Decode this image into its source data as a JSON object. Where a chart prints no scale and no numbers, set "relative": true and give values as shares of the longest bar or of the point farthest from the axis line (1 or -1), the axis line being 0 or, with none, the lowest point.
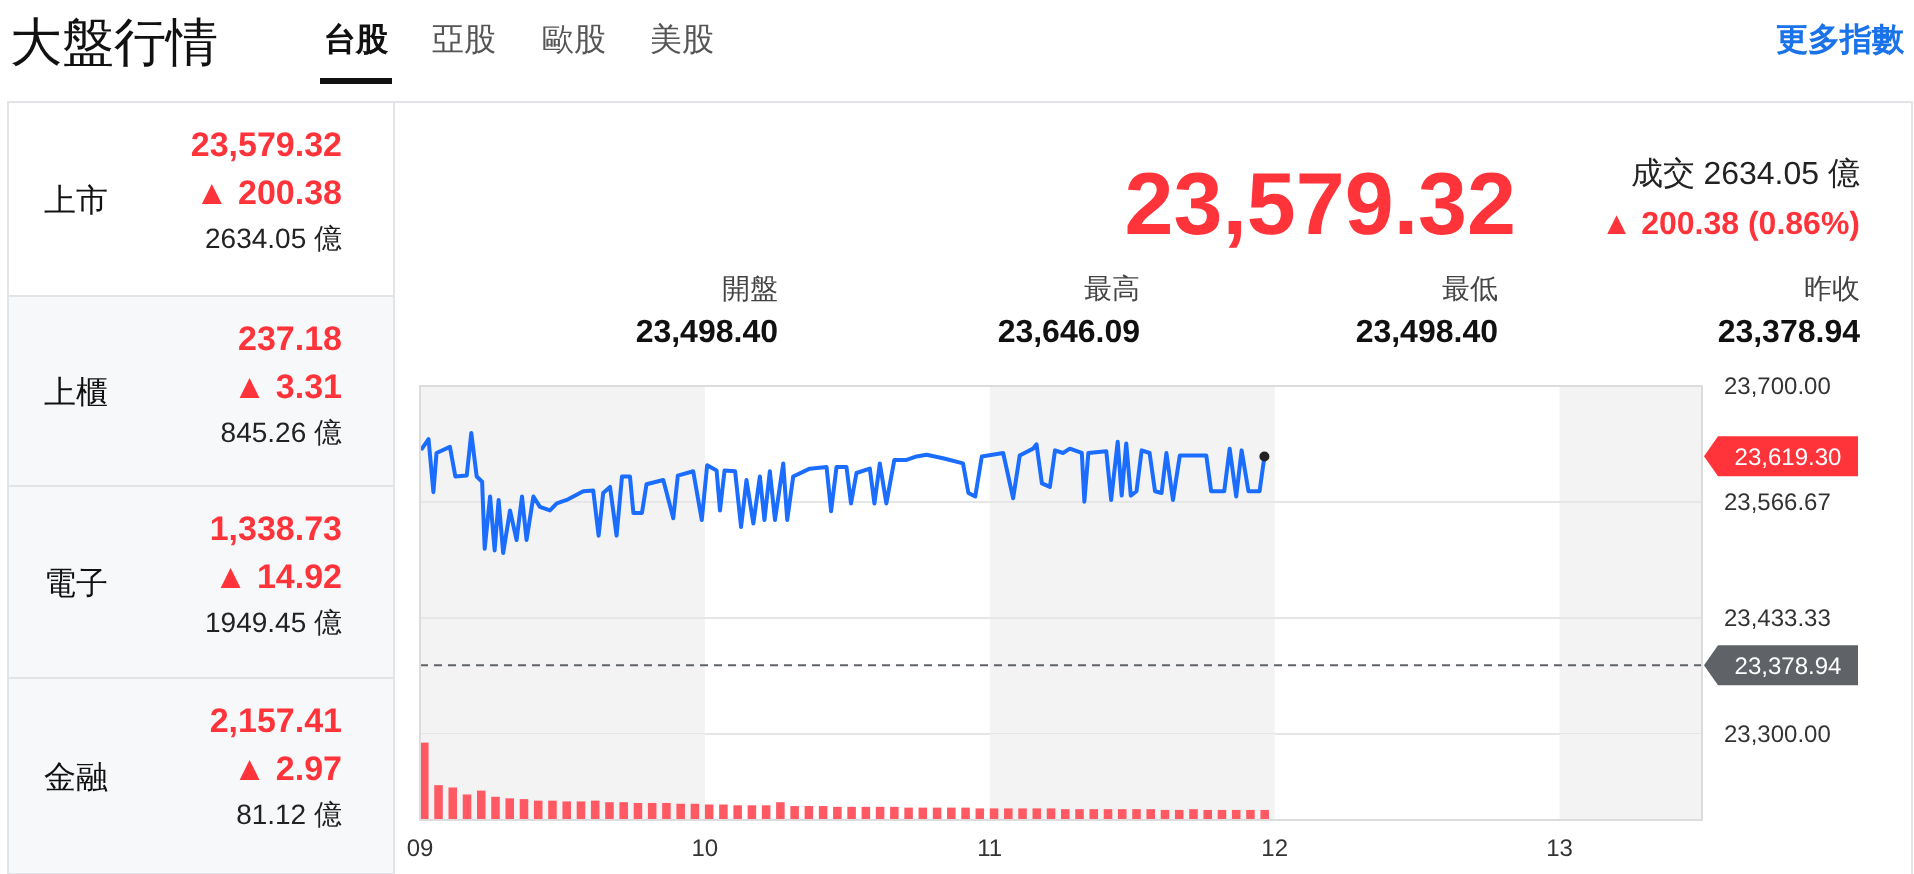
{
  "chart_data": [
    {
      "type": "other",
      "title": "大盤行情",
      "annotations": [
        "台股",
        "亞股",
        "歐股",
        "美股",
        "更多指數",
        "上市",
        "23,579.32",
        "▲ 200.38",
        "2634.05 億",
        "上櫃",
        "237.18",
        "▲ 3.31",
        "845.26 億",
        "電子",
        "1,338.73",
        "▲ 14.92",
        "1949.45 億",
        "金融",
        "2,157.41",
        "▲ 2.97",
        "81.12 億",
        "23,579.32",
        "成交 2634.05 億",
        "▲ 200.38 (0.86%)",
        "開盤",
        "23,498.40",
        "最高",
        "23,646.09",
        "最低",
        "23,498.40",
        "昨收",
        "23,378.94"
      ]
    },
    {
      "type": "line",
      "tick_labels": "y",
      "grid": "y",
      "xlim": [
        9,
        13.5
      ],
      "ylim": [
        23300,
        23700
      ],
      "yticks": [
        {
          "value": 23300,
          "label": "23,300.00"
        },
        {
          "value": 23433.33,
          "label": "23,433.33"
        },
        {
          "value": 23566.67,
          "label": "23,566.67"
        },
        {
          "value": 23700,
          "label": "23,700.00"
        }
      ],
      "bands": [
        {
          "axis": "x",
          "from": 9,
          "to": 10,
          "color": "#f3f3f3"
        },
        {
          "axis": "x",
          "from": 11,
          "to": 12,
          "color": "#f3f3f3"
        },
        {
          "axis": "x",
          "from": 13,
          "to": 13.5,
          "color": "#f3f3f3"
        }
      ],
      "ref_lines": [
        {
          "axis": "y",
          "value": 23378.94,
          "label": "23,378.94",
          "color": "#5f6368",
          "line_style": "dashed"
        }
      ],
      "annotations": [
        {
          "text": "23,619.30",
          "x": 13.5,
          "y": 23619.3
        }
      ],
      "series": [
        {
          "color": "#1a6dff",
          "x": [
            9.007,
            9.03,
            9.047,
            9.058,
            9.105,
            9.124,
            9.164,
            9.18,
            9.199,
            9.218,
            9.227,
            9.246,
            9.262,
            9.276,
            9.292,
            9.316,
            9.339,
            9.358,
            9.374,
            9.398,
            9.421,
            9.456,
            9.48,
            9.515,
            9.573,
            9.608,
            9.627,
            9.643,
            9.667,
            9.69,
            9.709,
            9.737,
            9.749,
            9.779,
            9.795,
            9.854,
            9.889,
            9.905,
            9.959,
            9.989,
            10.008,
            10.041,
            10.053,
            10.069,
            10.106,
            10.127,
            10.146,
            10.17,
            10.193,
            10.209,
            10.228,
            10.246,
            10.275,
            10.289,
            10.31,
            10.368,
            10.427,
            10.443,
            10.462,
            10.497,
            10.513,
            10.532,
            10.579,
            10.595,
            10.614,
            10.637,
            10.665,
            10.708,
            10.743,
            10.778,
            10.836,
            10.906,
            10.925,
            10.949,
            10.972,
            11.047,
            11.082,
            11.105,
            11.152,
            11.164,
            11.183,
            11.211,
            11.229,
            11.257,
            11.281,
            11.323,
            11.332,
            11.346,
            11.409,
            11.426,
            11.449,
            11.463,
            11.479,
            11.495,
            11.515,
            11.533,
            11.561,
            11.58,
            11.603,
            11.62,
            11.643,
            11.667,
            11.76,
            11.777,
            11.823,
            11.842,
            11.865,
            11.884,
            11.908,
            11.947,
            11.964
          ],
          "values": [
            23628,
            23639,
            23578,
            23623,
            23630,
            23596,
            23597,
            23646,
            23596,
            23590,
            23513,
            23573,
            23511,
            23569,
            23508,
            23557,
            23523,
            23573,
            23523,
            23573,
            23561,
            23557,
            23565,
            23569,
            23579,
            23580,
            23528,
            23577,
            23584,
            23528,
            23596,
            23596,
            23554,
            23554,
            23587,
            23592,
            23548,
            23597,
            23602,
            23546,
            23609,
            23603,
            23557,
            23603,
            23602,
            23538,
            23592,
            23542,
            23596,
            23546,
            23602,
            23546,
            23611,
            23546,
            23596,
            23605,
            23607,
            23556,
            23607,
            23607,
            23565,
            23600,
            23605,
            23565,
            23611,
            23565,
            23615,
            23615,
            23619,
            23621,
            23617,
            23611,
            23577,
            23573,
            23619,
            23623,
            23571,
            23620,
            23628,
            23633,
            23588,
            23584,
            23626,
            23623,
            23628,
            23623,
            23567,
            23623,
            23625,
            23569,
            23636,
            23574,
            23634,
            23574,
            23579,
            23626,
            23623,
            23579,
            23577,
            23623,
            23569,
            23620,
            23620,
            23579,
            23579,
            23628,
            23573,
            23626,
            23579,
            23579,
            23619
          ]
        }
      ]
    },
    {
      "type": "bar",
      "relative": true,
      "tick_labels": "x",
      "xlim": [
        9,
        13.5
      ],
      "xticks": [
        {
          "value": 9,
          "label": "09"
        },
        {
          "value": 10,
          "label": "10"
        },
        {
          "value": 11,
          "label": "11"
        },
        {
          "value": 12,
          "label": "12"
        },
        {
          "value": 13,
          "label": "13"
        }
      ],
      "bands": [
        {
          "axis": "x",
          "from": 9,
          "to": 10,
          "color": "#f3f3f3"
        },
        {
          "axis": "x",
          "from": 11,
          "to": 12,
          "color": "#f3f3f3"
        },
        {
          "axis": "x",
          "from": 13,
          "to": 13.5,
          "color": "#f3f3f3"
        }
      ],
      "x": [
        9.0,
        9.05,
        9.1,
        9.15,
        9.2,
        9.25,
        9.3,
        9.35,
        9.4,
        9.45,
        9.5,
        9.55,
        9.6,
        9.65,
        9.7,
        9.75,
        9.8,
        9.85,
        9.9,
        9.95,
        10.0,
        10.05,
        10.1,
        10.15,
        10.2,
        10.25,
        10.3,
        10.35,
        10.4,
        10.45,
        10.5,
        10.55,
        10.6,
        10.65,
        10.7,
        10.75,
        10.8,
        10.85,
        10.9,
        10.95,
        11.0,
        11.05,
        11.1,
        11.15,
        11.2,
        11.25,
        11.3,
        11.35,
        11.4,
        11.45,
        11.5,
        11.55,
        11.6,
        11.65,
        11.7,
        11.75,
        11.8,
        11.85,
        11.9,
        11.95
      ],
      "color": "#ff5a64",
      "values": [
        1,
        0.45,
        0.42,
        0.33,
        0.38,
        0.3,
        0.28,
        0.27,
        0.25,
        0.25,
        0.24,
        0.24,
        0.25,
        0.23,
        0.23,
        0.22,
        0.22,
        0.22,
        0.21,
        0.21,
        0.2,
        0.2,
        0.19,
        0.19,
        0.19,
        0.23,
        0.18,
        0.18,
        0.18,
        0.17,
        0.17,
        0.17,
        0.17,
        0.17,
        0.16,
        0.16,
        0.16,
        0.16,
        0.16,
        0.15,
        0.15,
        0.15,
        0.15,
        0.15,
        0.15,
        0.14,
        0.14,
        0.14,
        0.14,
        0.14,
        0.14,
        0.14,
        0.13,
        0.13,
        0.14,
        0.13,
        0.13,
        0.13,
        0.13,
        0.13
      ]
    }
  ]
}
